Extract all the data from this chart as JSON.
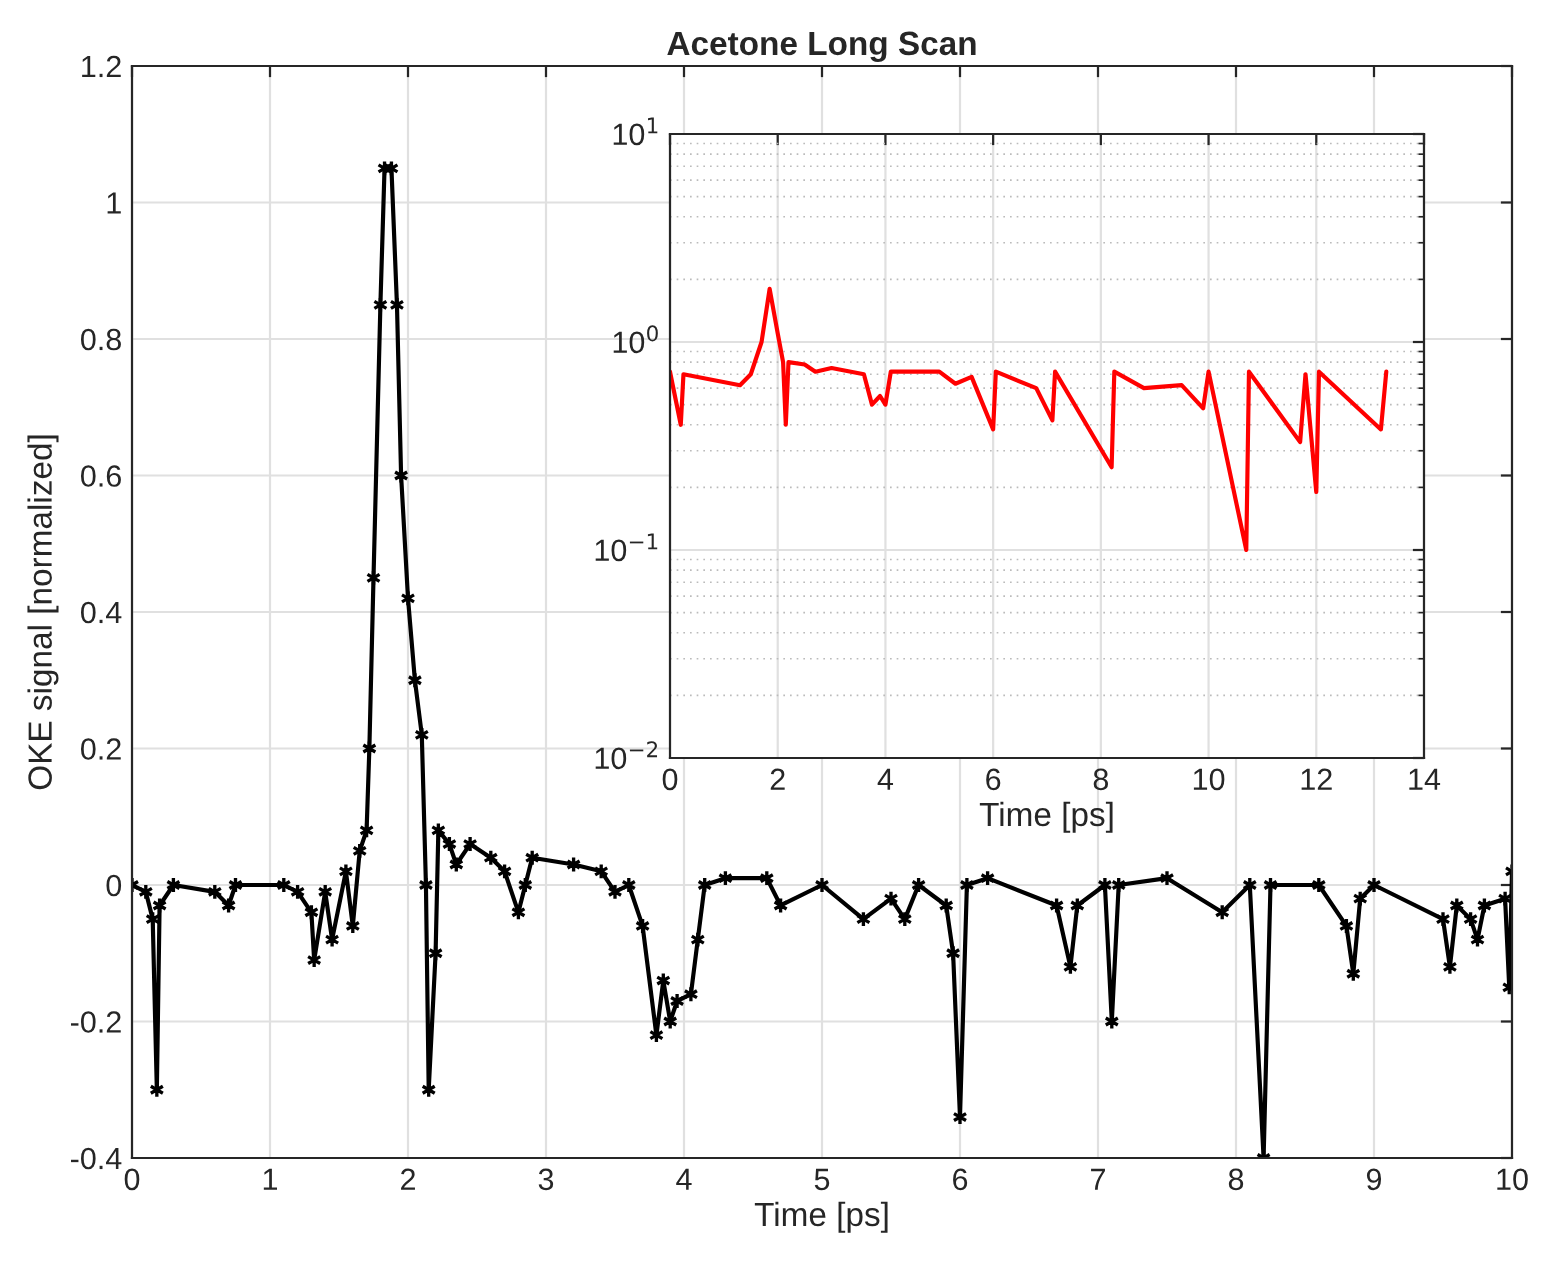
{
  "chart_data": [
    {
      "type": "line",
      "title": "Acetone Long Scan",
      "xlabel": "Time [ps]",
      "ylabel": "OKE signal [normalized]",
      "xlim": [
        0,
        10
      ],
      "xticks": [
        0,
        1,
        2,
        3,
        4,
        5,
        6,
        7,
        8,
        9,
        10
      ],
      "ylim": [
        -0.4,
        1.2
      ],
      "yticks": [
        -0.4,
        -0.2,
        0,
        0.2,
        0.4,
        0.6,
        0.8,
        1,
        1.2
      ],
      "grid": true,
      "marker": "cross",
      "line_style": "solid",
      "series": [
        {
          "color": "#000000",
          "x": [
            0,
            0.1,
            0.15,
            0.18,
            0.2,
            0.3,
            0.6,
            0.7,
            0.75,
            1.1,
            1.2,
            1.3,
            1.32,
            1.4,
            1.45,
            1.55,
            1.6,
            1.65,
            1.7,
            1.72,
            1.75,
            1.8,
            1.83,
            1.88,
            1.92,
            1.95,
            2.0,
            2.05,
            2.1,
            2.13,
            2.15,
            2.2,
            2.22,
            2.3,
            2.35,
            2.45,
            2.6,
            2.7,
            2.8,
            2.85,
            2.9,
            3.2,
            3.4,
            3.5,
            3.6,
            3.7,
            3.8,
            3.85,
            3.9,
            3.95,
            4.05,
            4.1,
            4.15,
            4.3,
            4.6,
            4.7,
            5.0,
            5.3,
            5.5,
            5.6,
            5.7,
            5.9,
            5.95,
            6.0,
            6.05,
            6.2,
            6.7,
            6.8,
            6.85,
            7.05,
            7.1,
            7.15,
            7.5,
            7.9,
            8.1,
            8.2,
            8.25,
            8.6,
            8.8,
            8.85,
            8.9,
            9.0,
            9.5,
            9.55,
            9.6,
            9.7,
            9.75,
            9.8,
            9.95,
            9.98,
            10.0
          ],
          "values": [
            0,
            -0.01,
            -0.05,
            -0.3,
            -0.03,
            0,
            -0.01,
            -0.03,
            0,
            0,
            -0.01,
            -0.04,
            -0.11,
            -0.01,
            -0.08,
            0.02,
            -0.06,
            0.05,
            0.08,
            0.2,
            0.45,
            0.85,
            1.05,
            1.05,
            0.85,
            0.6,
            0.42,
            0.3,
            0.22,
            0,
            -0.3,
            -0.1,
            0.08,
            0.06,
            0.03,
            0.06,
            0.04,
            0.02,
            -0.04,
            0,
            0.04,
            0.03,
            0.02,
            -0.01,
            0,
            -0.06,
            -0.22,
            -0.14,
            -0.2,
            -0.17,
            -0.16,
            -0.08,
            0,
            0.01,
            0.01,
            -0.03,
            0,
            -0.05,
            -0.02,
            -0.05,
            0,
            -0.03,
            -0.1,
            -0.34,
            0,
            0.01,
            -0.03,
            -0.12,
            -0.03,
            0,
            -0.2,
            0,
            0.01,
            -0.04,
            0,
            -0.4,
            0,
            0,
            -0.06,
            -0.13,
            -0.02,
            0,
            -0.05,
            -0.12,
            -0.03,
            -0.05,
            -0.08,
            -0.03,
            -0.02,
            -0.15,
            0.02
          ]
        }
      ]
    },
    {
      "type": "line",
      "xlabel": "Time [ps]",
      "log": "y",
      "xlim": [
        0,
        14
      ],
      "xticks": [
        0,
        2,
        4,
        6,
        8,
        10,
        12,
        14
      ],
      "ylim": [
        0.01,
        10
      ],
      "yticks": [
        {
          "value": 0.01,
          "label": "10$^{−2}$"
        },
        {
          "value": 0.1,
          "label": "10$^{−1}$"
        },
        {
          "value": 1,
          "label": "10$^{0}$"
        },
        {
          "value": 10,
          "label": "10$^{1}$"
        }
      ],
      "grid": true,
      "line_style": "solid",
      "series": [
        {
          "color": "#ff0000",
          "x": [
            0,
            0.2,
            0.25,
            1.3,
            1.5,
            1.7,
            1.85,
            2.0,
            2.1,
            2.15,
            2.2,
            2.5,
            2.7,
            3.0,
            3.6,
            3.75,
            3.9,
            4.0,
            4.1,
            5.0,
            5.3,
            5.6,
            6.0,
            6.05,
            6.8,
            7.1,
            7.15,
            8.2,
            8.25,
            8.8,
            9.5,
            9.9,
            10.0,
            10.7,
            10.75,
            11.7,
            11.8,
            12.0,
            12.05,
            13.2,
            13.3
          ],
          "values": [
            0.72,
            0.4,
            0.7,
            0.62,
            0.7,
            1.0,
            1.8,
            1.1,
            0.8,
            0.4,
            0.8,
            0.78,
            0.72,
            0.75,
            0.7,
            0.5,
            0.55,
            0.5,
            0.72,
            0.72,
            0.63,
            0.68,
            0.38,
            0.72,
            0.6,
            0.42,
            0.72,
            0.25,
            0.72,
            0.6,
            0.62,
            0.48,
            0.72,
            0.1,
            0.72,
            0.33,
            0.7,
            0.19,
            0.72,
            0.38,
            0.72
          ]
        }
      ]
    }
  ]
}
